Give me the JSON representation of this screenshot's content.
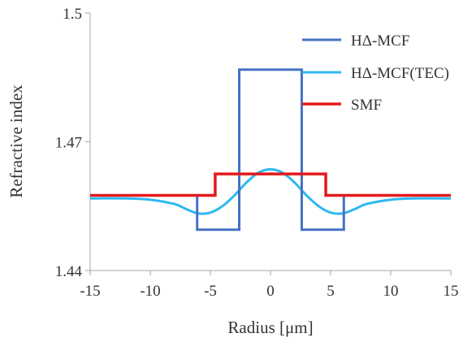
{
  "chart_data": {
    "type": "line",
    "xlabel": "Radius [μm]",
    "ylabel": "Refractive index",
    "xlim": [
      -15,
      15
    ],
    "ylim": [
      1.44,
      1.5
    ],
    "x_ticks": [
      -15,
      -10,
      -5,
      0,
      5,
      10,
      15
    ],
    "x_tick_labels": [
      "-15",
      "-10",
      "-5",
      "0",
      "5",
      "10",
      "15"
    ],
    "y_ticks": [
      1.44,
      1.47,
      1.5
    ],
    "y_tick_labels": [
      "1.44",
      "1.47",
      "1.5"
    ],
    "grid": false,
    "legend_position": "top-right",
    "series": [
      {
        "name": "HΔ-MCF",
        "color": "#4472C4",
        "x": [
          -15,
          -6.1,
          -6.1,
          -2.6,
          -2.6,
          2.6,
          2.6,
          6.1,
          6.1,
          15
        ],
        "y": [
          1.4575,
          1.4575,
          1.4495,
          1.4495,
          1.4868,
          1.4868,
          1.4495,
          1.4495,
          1.4575,
          1.4575
        ]
      },
      {
        "name": "HΔ-MCF(TEC)",
        "color": "#2EB8F0",
        "x": [
          -15,
          -12,
          -10,
          -8,
          -7,
          -6,
          -5,
          -4,
          -3,
          -2,
          -1,
          0,
          1,
          2,
          3,
          4,
          5,
          6,
          7,
          8,
          10,
          12,
          15
        ],
        "y": [
          1.4568,
          1.4568,
          1.4565,
          1.4555,
          1.4543,
          1.4533,
          1.4535,
          1.455,
          1.4575,
          1.4605,
          1.4628,
          1.4636,
          1.4628,
          1.4605,
          1.4575,
          1.455,
          1.4535,
          1.4533,
          1.4543,
          1.4555,
          1.4565,
          1.4568,
          1.4568
        ]
      },
      {
        "name": "SMF",
        "color": "#E31A1C",
        "x": [
          -15,
          -4.6,
          -4.6,
          4.6,
          4.6,
          15
        ],
        "y": [
          1.4575,
          1.4575,
          1.4625,
          1.4625,
          1.4575,
          1.4575
        ]
      }
    ]
  }
}
